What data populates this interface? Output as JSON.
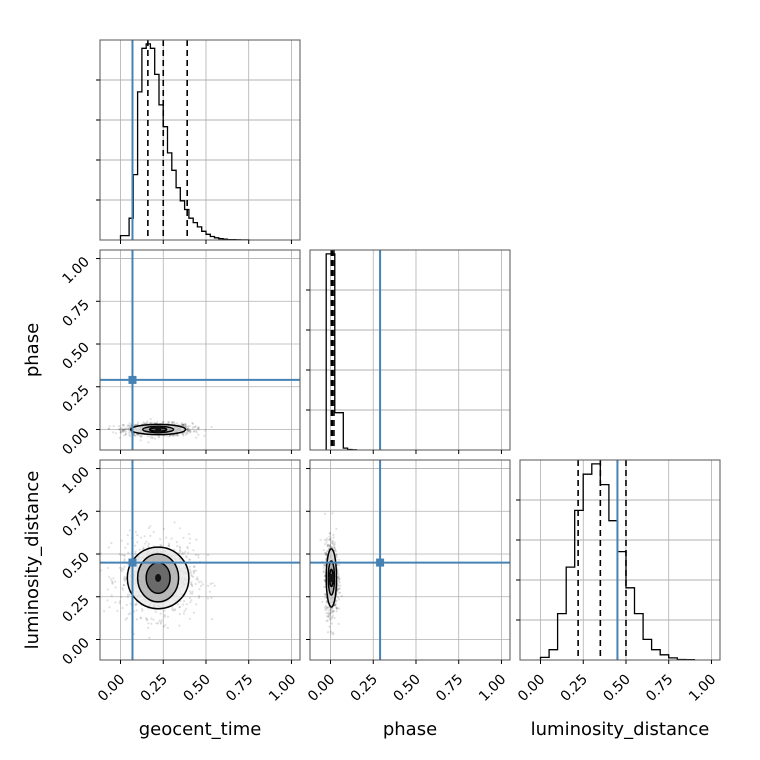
{
  "chart_data": {
    "type": "corner",
    "parameters": [
      "geocent_time",
      "phase",
      "luminosity_distance"
    ],
    "axis_labels": {
      "x": [
        "geocent_time",
        "phase",
        "luminosity_distance"
      ],
      "y": [
        "phase",
        "luminosity_distance"
      ]
    },
    "range": [
      0,
      1.0
    ],
    "tick_values": [
      0.0,
      0.25,
      0.5,
      0.75,
      1.0
    ],
    "tick_labels": [
      "0.00",
      "0.25",
      "0.50",
      "0.75",
      "1.00"
    ],
    "truths": [
      0.07,
      0.29,
      0.45
    ],
    "truth_color": "#4682b4",
    "grid": true,
    "histograms": [
      {
        "parameter": "geocent_time",
        "bin_edges": [
          0.0,
          0.025,
          0.05,
          0.075,
          0.1,
          0.125,
          0.15,
          0.175,
          0.2,
          0.225,
          0.25,
          0.275,
          0.3,
          0.325,
          0.35,
          0.375,
          0.4,
          0.425,
          0.45,
          0.475,
          0.5,
          0.525,
          0.55,
          0.575,
          0.6,
          0.625,
          0.65,
          0.675,
          0.7,
          0.725,
          0.75
        ],
        "counts": [
          1,
          1,
          5,
          15,
          34,
          44,
          45,
          44,
          38,
          31,
          26,
          20,
          16,
          12,
          9,
          7,
          5,
          4,
          3,
          2,
          1.3,
          0.8,
          0.5,
          0.3,
          0.2,
          0.1,
          0.1,
          0.05,
          0.03,
          0.02
        ],
        "quantiles": [
          0.16,
          0.25,
          0.39
        ]
      },
      {
        "parameter": "phase",
        "bin_edges": [
          -0.025,
          0.0,
          0.025,
          0.05,
          0.075,
          0.1,
          0.125,
          0.15
        ],
        "counts": [
          210,
          210,
          40,
          40,
          2,
          0.5,
          0.2
        ],
        "quantiles": [
          0.005,
          0.01,
          0.02
        ]
      },
      {
        "parameter": "luminosity_distance",
        "bin_edges": [
          0.0,
          0.05,
          0.1,
          0.15,
          0.2,
          0.25,
          0.3,
          0.35,
          0.4,
          0.45,
          0.5,
          0.55,
          0.6,
          0.65,
          0.7,
          0.75,
          0.8,
          0.85,
          0.9
        ],
        "counts": [
          0.5,
          2,
          9,
          18,
          29,
          36,
          38,
          34,
          27,
          21,
          14,
          9,
          4,
          2,
          1,
          0.4,
          0.1,
          0.05
        ],
        "quantiles": [
          0.22,
          0.35,
          0.5
        ]
      }
    ],
    "contours": [
      {
        "x": "geocent_time",
        "y": "phase",
        "center": [
          0.22,
          0.0
        ],
        "levels": [
          {
            "rx": 0.16,
            "ry": 0.03
          },
          {
            "rx": 0.09,
            "ry": 0.018
          },
          {
            "rx": 0.05,
            "ry": 0.01
          }
        ]
      },
      {
        "x": "geocent_time",
        "y": "luminosity_distance",
        "center": [
          0.22,
          0.36
        ],
        "levels": [
          {
            "rx": 0.18,
            "ry": 0.18
          },
          {
            "rx": 0.12,
            "ry": 0.14
          },
          {
            "rx": 0.07,
            "ry": 0.09
          }
        ]
      },
      {
        "x": "phase",
        "y": "luminosity_distance",
        "center": [
          0.005,
          0.36
        ],
        "levels": [
          {
            "rx": 0.03,
            "ry": 0.17
          },
          {
            "rx": 0.018,
            "ry": 0.1
          },
          {
            "rx": 0.01,
            "ry": 0.05
          }
        ]
      }
    ]
  }
}
